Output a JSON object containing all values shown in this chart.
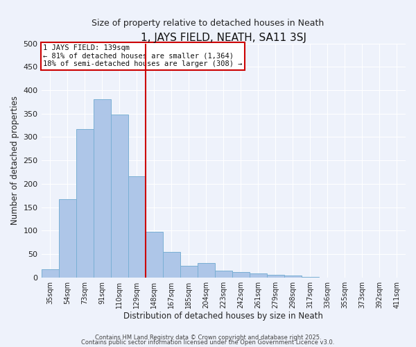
{
  "title": "1, JAYS FIELD, NEATH, SA11 3SJ",
  "subtitle": "Size of property relative to detached houses in Neath",
  "xlabel": "Distribution of detached houses by size in Neath",
  "ylabel": "Number of detached properties",
  "bar_labels": [
    "35sqm",
    "54sqm",
    "73sqm",
    "91sqm",
    "110sqm",
    "129sqm",
    "148sqm",
    "167sqm",
    "185sqm",
    "204sqm",
    "223sqm",
    "242sqm",
    "261sqm",
    "279sqm",
    "298sqm",
    "317sqm",
    "336sqm",
    "355sqm",
    "373sqm",
    "392sqm",
    "411sqm"
  ],
  "bar_values": [
    18,
    167,
    317,
    380,
    348,
    216,
    97,
    54,
    25,
    30,
    15,
    11,
    8,
    5,
    4,
    1,
    0,
    0,
    0,
    0,
    0
  ],
  "bar_color": "#aec6e8",
  "bar_edge_color": "#7aafd4",
  "vline_color": "#cc0000",
  "vline_x_index": 6,
  "annotation_title": "1 JAYS FIELD: 139sqm",
  "annotation_line1": "← 81% of detached houses are smaller (1,364)",
  "annotation_line2": "18% of semi-detached houses are larger (308) →",
  "annotation_box_facecolor": "#ffffff",
  "annotation_box_edgecolor": "#cc0000",
  "ylim": [
    0,
    500
  ],
  "yticks": [
    0,
    50,
    100,
    150,
    200,
    250,
    300,
    350,
    400,
    450,
    500
  ],
  "background_color": "#eef2fb",
  "grid_color": "#ffffff",
  "footer1": "Contains HM Land Registry data © Crown copyright and database right 2025.",
  "footer2": "Contains public sector information licensed under the Open Government Licence v3.0."
}
